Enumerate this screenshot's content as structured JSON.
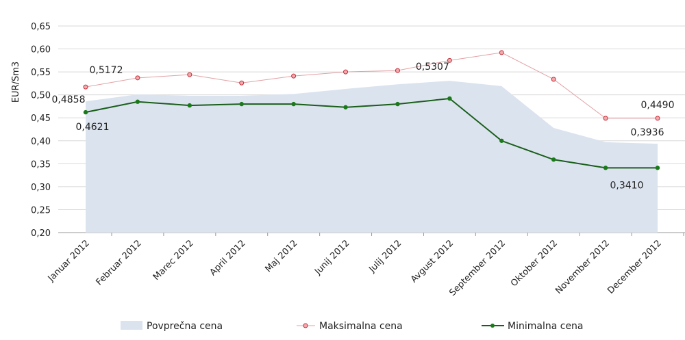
{
  "chart_data": {
    "type": "line",
    "ylabel": "EUR/Sm3",
    "xlabel": "",
    "ylim": [
      0.2,
      0.65
    ],
    "yticks": [
      "0,20",
      "0,25",
      "0,30",
      "0,35",
      "0,40",
      "0,45",
      "0,50",
      "0,55",
      "0,60",
      "0,65"
    ],
    "grid": true,
    "legend_position": "bottom",
    "categories": [
      "Januar  2012",
      "Februar  2012",
      "Marec  2012",
      "April  2012",
      "Maj  2012",
      "Junij  2012",
      "Julij  2012",
      "Avgust  2012",
      "September  2012",
      "Oktober  2012",
      "November  2012",
      "December  2012"
    ],
    "series": [
      {
        "name": "Povprečna cena",
        "kind": "area",
        "color": "#dbe3ef",
        "values": [
          0.4858,
          0.501,
          0.498,
          0.498,
          0.502,
          0.513,
          0.523,
          0.5307,
          0.519,
          0.428,
          0.397,
          0.3936
        ]
      },
      {
        "name": "Maksimalna cena",
        "kind": "line-markers",
        "color": "#d9474f",
        "values": [
          0.5172,
          0.537,
          0.544,
          0.526,
          0.541,
          0.55,
          0.553,
          0.575,
          0.592,
          0.534,
          0.449,
          0.449
        ]
      },
      {
        "name": "Minimalna cena",
        "kind": "line-markers",
        "color": "#1a6b1a",
        "values": [
          0.4621,
          0.485,
          0.477,
          0.48,
          0.48,
          0.473,
          0.48,
          0.492,
          0.4,
          0.359,
          0.341,
          0.341
        ]
      }
    ],
    "data_labels": [
      {
        "series": 1,
        "index": 0,
        "text": "0,5172"
      },
      {
        "series": 0,
        "index": 0,
        "text": "0,4858"
      },
      {
        "series": 2,
        "index": 0,
        "text": "0,4621"
      },
      {
        "series": 0,
        "index": 7,
        "text": "0,5307"
      },
      {
        "series": 1,
        "index": 11,
        "text": "0,4490"
      },
      {
        "series": 0,
        "index": 11,
        "text": "0,3936"
      },
      {
        "series": 2,
        "index": 11,
        "text": "0,3410"
      }
    ]
  }
}
